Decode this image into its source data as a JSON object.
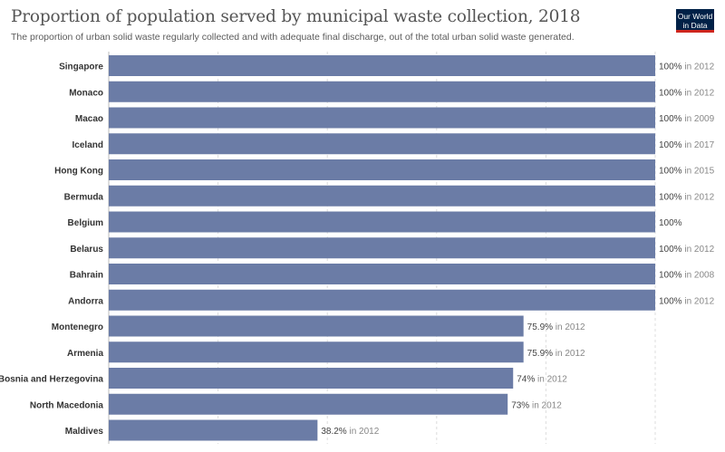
{
  "header": {
    "title": "Proportion of population served by municipal waste collection, 2018",
    "subtitle": "The proportion of urban solid waste regularly collected and with adequate final discharge, out of the total urban solid waste generated.",
    "logo_line1": "Our World",
    "logo_line2": "in Data"
  },
  "colors": {
    "bar": "#6b7ca6",
    "grid": "#dddddd",
    "label": "#333333",
    "value": "#444444",
    "year": "#888888"
  },
  "chart_data": {
    "type": "bar",
    "orientation": "horizontal",
    "xlim": [
      0,
      100
    ],
    "grid": true,
    "categories": [
      "Singapore",
      "Monaco",
      "Macao",
      "Iceland",
      "Hong Kong",
      "Bermuda",
      "Belgium",
      "Belarus",
      "Bahrain",
      "Andorra",
      "Montenegro",
      "Armenia",
      "Bosnia and Herzegovina",
      "North Macedonia",
      "Maldives"
    ],
    "values": [
      100,
      100,
      100,
      100,
      100,
      100,
      100,
      100,
      100,
      100,
      75.9,
      75.9,
      74,
      73,
      38.2
    ],
    "value_labels": [
      "100%",
      "100%",
      "100%",
      "100%",
      "100%",
      "100%",
      "100%",
      "100%",
      "100%",
      "100%",
      "75.9%",
      "75.9%",
      "74%",
      "73%",
      "38.2%"
    ],
    "year_labels": [
      "in 2012",
      "in 2012",
      "in 2009",
      "in 2017",
      "in 2015",
      "in 2012",
      "",
      "in 2012",
      "in 2008",
      "in 2012",
      "in 2012",
      "in 2012",
      "in 2012",
      "in 2012",
      "in 2012"
    ]
  }
}
